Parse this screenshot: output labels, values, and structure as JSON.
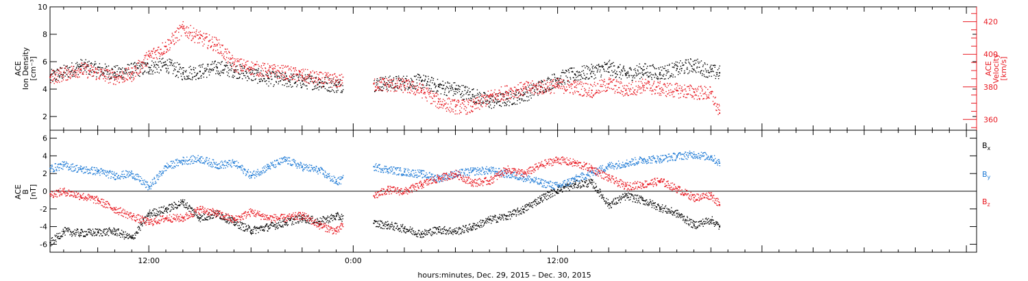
{
  "figure": {
    "xlabel": "hours:minutes, Dec. 29, 2015 – Dec. 30, 2015",
    "x_tick_labels": [
      "12:00",
      "0:00",
      "12:00"
    ]
  },
  "colors": {
    "black": "#000000",
    "red": "#e8171f",
    "blue": "#1f7bd6"
  },
  "chart_data": [
    {
      "type": "scatter",
      "panel": "top",
      "x_unit": "hours since 2015-12-29 00:00",
      "xlim": [
        6.2,
        60.6
      ],
      "ylabel_left": [
        "ACE",
        "Ion Density",
        "[cm⁻³]"
      ],
      "ylim_left": [
        1,
        10
      ],
      "y_ticks_left": [
        2,
        4,
        6,
        8,
        10
      ],
      "ylabel_right": [
        "ACE",
        "Velocity",
        "[km/s]"
      ],
      "ylim_right": [
        353.4,
        429.1
      ],
      "y_ticks_right": [
        360,
        380,
        400,
        420
      ],
      "data_gap_hours": [
        23.4,
        25.2
      ],
      "data_end_hour": 45.5,
      "series": [
        {
          "axis": "left",
          "color": "black",
          "x": [
            6.2,
            8,
            10,
            12,
            13,
            14,
            15,
            16,
            17,
            18,
            19,
            20,
            21,
            22,
            23,
            25.2,
            27,
            28,
            29,
            30,
            31,
            32,
            33,
            34,
            35,
            36,
            37,
            38,
            39,
            40,
            41,
            42,
            43,
            44,
            45,
            45.5
          ],
          "y": [
            4.9,
            5.7,
            5.2,
            5.6,
            5.8,
            5.2,
            5.3,
            5.6,
            5.4,
            5.1,
            4.8,
            4.7,
            4.6,
            4.5,
            4.3,
            4.4,
            4.5,
            4.6,
            4.2,
            4.0,
            3.6,
            3.1,
            3.3,
            3.6,
            4.2,
            4.8,
            5.1,
            5.3,
            5.6,
            5.1,
            5.4,
            5.2,
            5.5,
            5.8,
            5.3,
            5.2
          ]
        },
        {
          "axis": "right",
          "color": "red",
          "x": [
            6.2,
            8,
            10,
            11,
            12,
            13,
            14,
            15,
            16,
            17,
            18,
            19,
            20,
            21,
            22,
            23,
            25.2,
            27,
            28,
            29,
            30,
            31,
            32,
            33,
            34,
            35,
            36,
            37,
            38,
            39,
            40,
            41,
            42,
            43,
            44,
            45,
            45.5
          ],
          "y": [
            386,
            391,
            386,
            388,
            399,
            405,
            416,
            410,
            406,
            394,
            392,
            390,
            389,
            387,
            385,
            384,
            382,
            381,
            378,
            371,
            368,
            368,
            374,
            377,
            379,
            380,
            381,
            380,
            378,
            382,
            378,
            381,
            379,
            378,
            377,
            376,
            364
          ]
        }
      ]
    },
    {
      "type": "scatter",
      "panel": "bottom",
      "x_unit": "hours since 2015-12-29 00:00",
      "xlim": [
        6.2,
        60.6
      ],
      "ylabel": [
        "ACE",
        "B",
        "[nT]"
      ],
      "ylim": [
        -6.9,
        6.9
      ],
      "y_ticks": [
        -6,
        -4,
        -2,
        0,
        2,
        4,
        6
      ],
      "zero_line": true,
      "data_gap_hours": [
        23.4,
        25.2
      ],
      "data_end_hour": 45.5,
      "series": [
        {
          "name": "B",
          "subscript": "x",
          "color": "black",
          "x": [
            6.2,
            7,
            8,
            9,
            10,
            11,
            12,
            13,
            14,
            15,
            16,
            17,
            18,
            19,
            20,
            21,
            22,
            23,
            25.2,
            26,
            27,
            28,
            29,
            30,
            31,
            32,
            33,
            34,
            35,
            36,
            37,
            38,
            39,
            40,
            41,
            42,
            43,
            44,
            45,
            45.5
          ],
          "y": [
            -5.8,
            -4.5,
            -4.7,
            -4.6,
            -4.5,
            -5.3,
            -2.5,
            -2.0,
            -1.2,
            -3.0,
            -2.5,
            -3.5,
            -4.4,
            -4.0,
            -3.5,
            -3.0,
            -3.4,
            -2.8,
            -3.6,
            -3.8,
            -4.2,
            -4.8,
            -4.3,
            -4.5,
            -4.0,
            -3.2,
            -2.8,
            -2.0,
            -0.8,
            0.2,
            0.8,
            1.0,
            -1.5,
            -0.5,
            -1.0,
            -1.8,
            -2.5,
            -3.8,
            -3.2,
            -4.0
          ]
        },
        {
          "name": "B",
          "subscript": "y",
          "color": "blue",
          "x": [
            6.2,
            7,
            8,
            9,
            10,
            11,
            12,
            13,
            14,
            15,
            16,
            17,
            18,
            19,
            20,
            21,
            22,
            23,
            25.2,
            26,
            27,
            28,
            29,
            30,
            31,
            32,
            33,
            34,
            35,
            36,
            37,
            38,
            39,
            40,
            41,
            42,
            43,
            44,
            45,
            45.5
          ],
          "y": [
            2.6,
            3.0,
            2.5,
            2.3,
            1.8,
            2.0,
            0.5,
            2.8,
            3.5,
            3.7,
            3.0,
            3.2,
            1.8,
            2.8,
            3.6,
            2.8,
            2.4,
            1.1,
            2.8,
            2.5,
            2.2,
            2.0,
            1.5,
            2.0,
            2.3,
            2.4,
            2.0,
            1.6,
            1.0,
            0.6,
            1.4,
            2.1,
            2.9,
            3.2,
            3.6,
            3.7,
            4.0,
            4.2,
            3.9,
            3.2
          ]
        },
        {
          "name": "B",
          "subscript": "z",
          "color": "red",
          "x": [
            6.2,
            7,
            8,
            9,
            10,
            11,
            12,
            13,
            14,
            15,
            16,
            17,
            18,
            19,
            20,
            21,
            22,
            23,
            25.2,
            26,
            27,
            28,
            29,
            30,
            31,
            32,
            33,
            34,
            35,
            36,
            37,
            38,
            39,
            40,
            41,
            42,
            43,
            44,
            45,
            45.5
          ],
          "y": [
            -0.3,
            0.0,
            -0.5,
            -1.0,
            -2.0,
            -2.8,
            -3.5,
            -3.0,
            -3.0,
            -2.0,
            -2.5,
            -3.2,
            -2.3,
            -3.0,
            -3.0,
            -2.7,
            -3.8,
            -4.5,
            -0.5,
            0.2,
            0.0,
            0.8,
            1.5,
            2.0,
            1.0,
            1.2,
            2.5,
            2.0,
            3.0,
            3.6,
            3.2,
            2.6,
            1.5,
            0.6,
            0.8,
            1.2,
            0.3,
            -0.7,
            -0.4,
            -1.5
          ]
        }
      ]
    }
  ]
}
